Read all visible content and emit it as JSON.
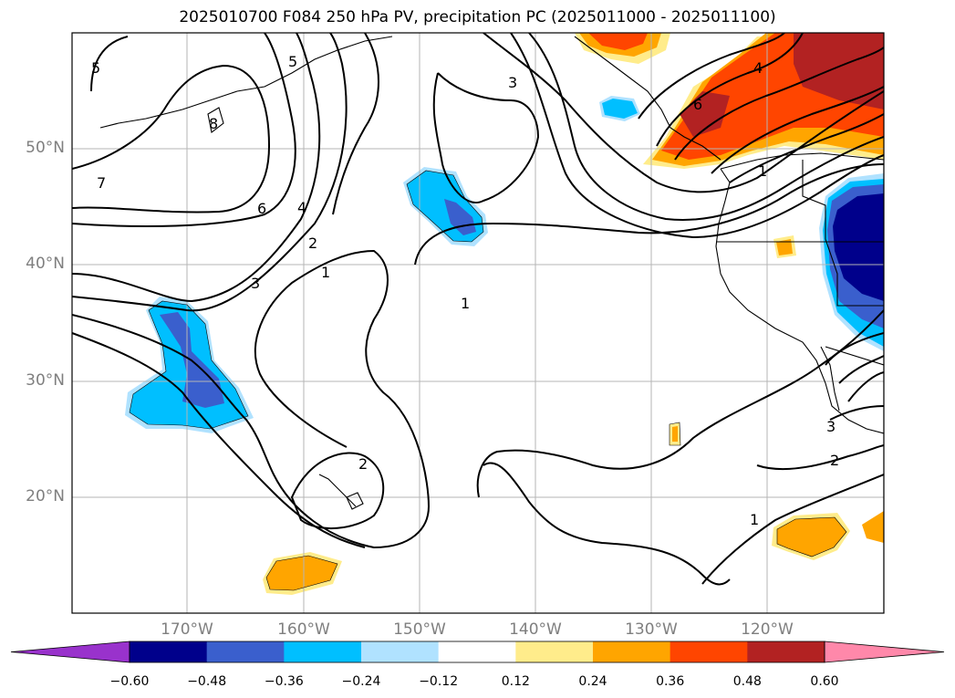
{
  "title": "2025010700 F084 250 hPa PV, precipitation PC (2025011000 - 2025011100)",
  "map": {
    "lat_labels": [
      "50°N",
      "40°N",
      "30°N",
      "20°N"
    ],
    "lon_labels": [
      "170°W",
      "160°W",
      "150°W",
      "140°W",
      "130°W",
      "120°W"
    ],
    "contour_labels": [
      "5",
      "5",
      "3",
      "8",
      "7",
      "6",
      "4",
      "2",
      "1",
      "3",
      "1",
      "2",
      "1",
      "2",
      "1",
      "3",
      "6",
      "4"
    ]
  },
  "colorbar": {
    "ticks": [
      "−0.60",
      "−0.48",
      "−0.36",
      "−0.24",
      "−0.12",
      "0.12",
      "0.24",
      "0.36",
      "0.48",
      "0.60"
    ],
    "colors": [
      "#9932cc",
      "#00008b",
      "#3a5fcd",
      "#00bfff",
      "#b0e2ff",
      "#ffffff",
      "#ffec8b",
      "#ffa500",
      "#ff4500",
      "#b22222",
      "#ff88aa"
    ]
  }
}
